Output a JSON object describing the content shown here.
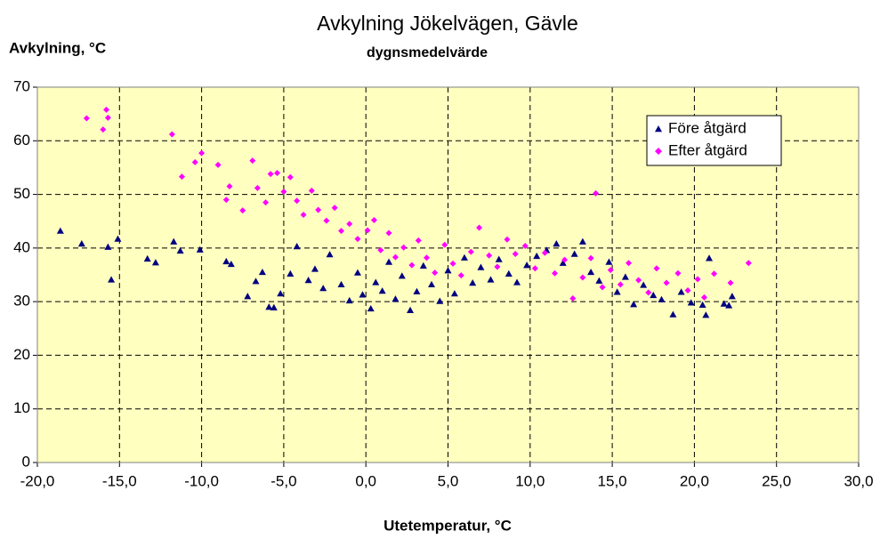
{
  "chart_data": {
    "type": "scatter",
    "title": "Avkylning Jökelvägen, Gävle",
    "subtitle": "dygnsmedelvärde",
    "y_label": "Avkylning, °C",
    "x_label": "Utetemperatur, °C",
    "xlim": [
      -20,
      30
    ],
    "ylim": [
      0,
      70
    ],
    "xticks": [
      {
        "value": -20,
        "label": "-20,0"
      },
      {
        "value": -15,
        "label": "-15,0"
      },
      {
        "value": -10,
        "label": "-10,0"
      },
      {
        "value": -5,
        "label": "-5,0"
      },
      {
        "value": 0,
        "label": "0,0"
      },
      {
        "value": 5,
        "label": "5,0"
      },
      {
        "value": 10,
        "label": "10,0"
      },
      {
        "value": 15,
        "label": "15,0"
      },
      {
        "value": 20,
        "label": "20,0"
      },
      {
        "value": 25,
        "label": "25,0"
      },
      {
        "value": 30,
        "label": "30,0"
      }
    ],
    "yticks": [
      0,
      10,
      20,
      30,
      40,
      50,
      60,
      70
    ],
    "grid": true,
    "legend": "upper right",
    "series": [
      {
        "name": "Före åtgärd",
        "color": "#000080",
        "marker": "triangle",
        "x": [
          -18.6,
          -17.3,
          -15.7,
          -15.5,
          -15.1,
          -13.3,
          -12.8,
          -11.7,
          -11.3,
          -10.1,
          -8.5,
          -8.2,
          -7.2,
          -6.7,
          -6.3,
          -5.9,
          -5.6,
          -5.2,
          -4.6,
          -4.2,
          -3.5,
          -3.1,
          -2.6,
          -2.2,
          -1.5,
          -1.0,
          -0.5,
          -0.2,
          0.3,
          0.6,
          1.0,
          1.4,
          1.8,
          2.2,
          2.7,
          3.1,
          3.5,
          4.0,
          4.5,
          5.0,
          5.4,
          6.0,
          6.5,
          7.0,
          7.6,
          8.1,
          8.7,
          9.2,
          9.8,
          10.4,
          11.0,
          11.6,
          12.0,
          12.7,
          13.2,
          13.7,
          14.2,
          14.8,
          15.3,
          15.8,
          16.3,
          16.9,
          17.5,
          18.0,
          18.7,
          19.2,
          19.8,
          20.5,
          20.7,
          20.9,
          21.8,
          22.3,
          22.1
        ],
        "values": [
          43.2,
          40.8,
          40.2,
          34.1,
          41.7,
          38,
          37.3,
          41.2,
          39.5,
          39.7,
          37.5,
          37,
          31,
          33.8,
          35.5,
          29,
          28.9,
          31.5,
          35.2,
          40.3,
          34,
          36.1,
          32.5,
          38.8,
          33.2,
          30.2,
          35.4,
          31.3,
          28.7,
          33.6,
          32,
          37.4,
          30.5,
          34.8,
          28.4,
          31.9,
          36.7,
          33.2,
          30.1,
          35.8,
          31.5,
          38.2,
          33.5,
          36.4,
          34.1,
          37.9,
          35.2,
          33.6,
          36.8,
          38.5,
          39.6,
          40.8,
          37.2,
          38.9,
          41.2,
          35.5,
          33.9,
          37.4,
          31.8,
          34.6,
          29.5,
          33.1,
          31.2,
          30.4,
          27.6,
          31.8,
          29.8,
          29.4,
          27.5,
          38.1,
          29.6,
          31.0,
          29.3
        ]
      },
      {
        "name": "Efter åtgärd",
        "color": "#ff00ff",
        "marker": "diamond",
        "x": [
          -17,
          -16,
          -15.8,
          -15.7,
          -11.8,
          -11.2,
          -10.4,
          -10.0,
          -9.0,
          -8.5,
          -8.3,
          -7.5,
          -6.9,
          -6.6,
          -6.1,
          -5.8,
          -5.4,
          -5.0,
          -4.6,
          -4.2,
          -3.8,
          -3.3,
          -2.9,
          -2.4,
          -1.9,
          -1.5,
          -1.0,
          -0.5,
          0.1,
          0.5,
          0.9,
          1.4,
          1.8,
          2.3,
          2.8,
          3.2,
          3.7,
          4.2,
          4.8,
          5.3,
          5.8,
          6.4,
          6.9,
          7.5,
          8.0,
          8.6,
          9.1,
          9.7,
          10.3,
          10.9,
          11.5,
          12.1,
          12.6,
          13.2,
          13.7,
          14.0,
          14.4,
          14.9,
          15.5,
          16.0,
          16.6,
          17.2,
          17.7,
          18.3,
          19.0,
          19.6,
          20.2,
          20.6,
          21.2,
          22.2,
          23.3
        ],
        "values": [
          64.2,
          62.1,
          65.8,
          64.3,
          61.2,
          53.3,
          56,
          57.7,
          55.5,
          49,
          51.5,
          47,
          56.3,
          51.2,
          48.5,
          53.8,
          54,
          50.5,
          53.2,
          48.8,
          46.2,
          50.7,
          47.1,
          45.1,
          47.5,
          43.2,
          44.5,
          41.7,
          43.3,
          45.2,
          39.6,
          42.8,
          38.3,
          40.1,
          36.8,
          41.4,
          38.2,
          35.4,
          40.6,
          37.1,
          34.9,
          39.3,
          43.8,
          38.6,
          36.5,
          41.6,
          38.9,
          40.4,
          36.2,
          39.1,
          35.3,
          37.8,
          30.6,
          34.5,
          38.1,
          50.2,
          32.7,
          35.9,
          33.2,
          37.2,
          34,
          31.7,
          36.2,
          33.5,
          35.3,
          32.1,
          34.2,
          30.8,
          35.2,
          33.5,
          37.2
        ]
      }
    ]
  }
}
